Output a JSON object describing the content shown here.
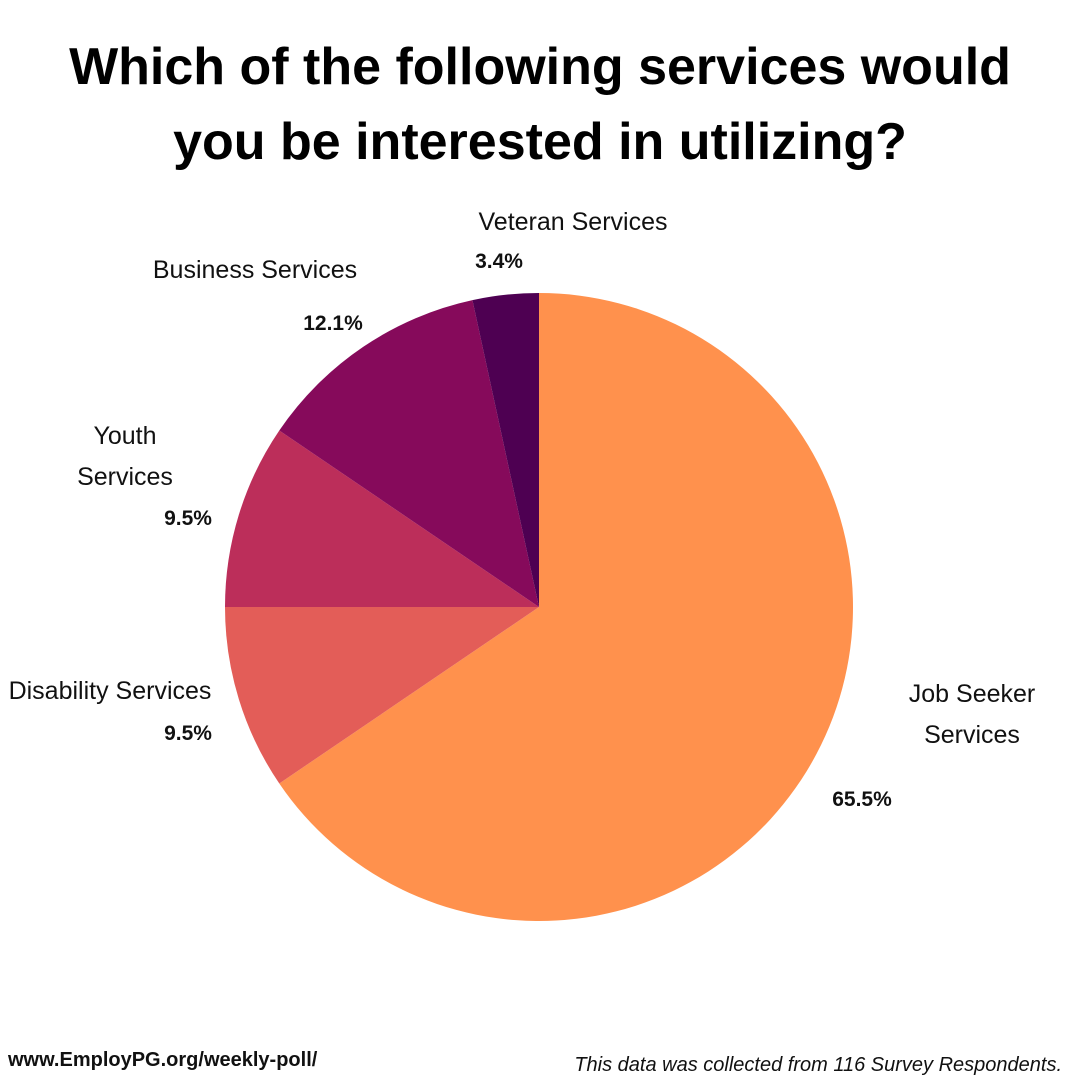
{
  "chart_data": {
    "type": "pie",
    "title": "Which of the following services would\nyou be interested in utilizing?",
    "slices": [
      {
        "label": [
          "Job Seeker",
          "Services"
        ],
        "value": 65.5,
        "value_label": "65.5%",
        "color": "#FF914D"
      },
      {
        "label": [
          "Disability Services"
        ],
        "value": 9.5,
        "value_label": "9.5%",
        "color": "#E35D58"
      },
      {
        "label": [
          "Youth",
          "Services"
        ],
        "value": 9.5,
        "value_label": "9.5%",
        "color": "#BC2E5A"
      },
      {
        "label": [
          "Business Services"
        ],
        "value": 12.1,
        "value_label": "12.1%",
        "color": "#860A5B"
      },
      {
        "label": [
          "Veteran Services"
        ],
        "value": 3.4,
        "value_label": "3.4%",
        "color": "#4E0052"
      }
    ],
    "start_angle": "12 o'clock",
    "direction": "clockwise"
  },
  "footer": {
    "url": "www.EmployPG.org/weekly-poll/",
    "note": "This data was collected from 116 Survey Respondents."
  }
}
